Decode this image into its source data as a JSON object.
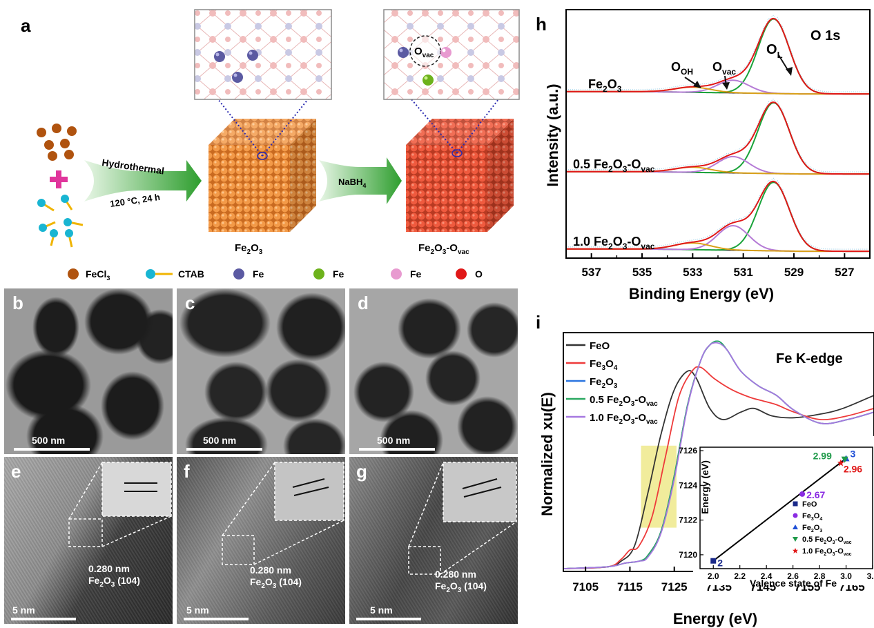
{
  "panels": {
    "a": "a",
    "b": "b",
    "c": "c",
    "d": "d",
    "e": "e",
    "f": "f",
    "g": "g",
    "h": "h",
    "i": "i"
  },
  "schematic": {
    "step1_top": "Hydrothermal",
    "step1_bottom": "120 °C, 24 h",
    "step2": "NaBH",
    "step2_sub": "4",
    "product1": "Fe",
    "product1_sub": "2",
    "product1_tail": "O",
    "product1_sub2": "3",
    "product2_main": "Fe",
    "product2_sub": "2",
    "product2_tail": "O",
    "product2_sub2": "3",
    "product2_suffix": "-O",
    "product2_vac": "vac",
    "ovac_main": "O",
    "ovac_sub": "vac",
    "legend": {
      "fecl3": "FeCl",
      "fecl3_sub": "3",
      "ctab": "CTAB",
      "fe1": "Fe",
      "fe2": "Fe",
      "fe3": "Fe",
      "o": "O"
    },
    "colors": {
      "fecl3": "#b0530f",
      "ctab_ball": "#19b5d2",
      "ctab_tail": "#f0b400",
      "fe_blue": "#5b5aa2",
      "fe_green": "#6db21c",
      "fe_pink": "#e89ad0",
      "o_red": "#e01818",
      "cube1": "#e98a3a",
      "cube2": "#e55a3c",
      "arrow": "#3aa332",
      "plus": "#e0359c"
    }
  },
  "tem": {
    "scale_500": "500 nm",
    "scale_5": "5 nm",
    "d_spacing": "0.280 nm",
    "plane_main": "Fe",
    "plane_sub": "2",
    "plane_tail": "O",
    "plane_sub2": "3",
    "plane_hkl": " (104)"
  },
  "chart_data": [
    {
      "type": "line",
      "panel": "h",
      "title": "O 1s",
      "xlabel": "Binding Energy (eV)",
      "ylabel": "Intensity (a.u.)",
      "xlim": [
        538,
        526
      ],
      "xticks": [
        537,
        535,
        533,
        531,
        529,
        527
      ],
      "xtick_labels": [
        "537",
        "535",
        "533",
        "531",
        "529",
        "527"
      ],
      "peak_labels": {
        "ol": "O",
        "ol_sub": "L",
        "ovac": "O",
        "ovac_sub": "vac",
        "ooh": "O",
        "ooh_sub": "OH"
      },
      "spectra": [
        {
          "name": "Fe",
          "name_sub": "2",
          "name_tail": "O",
          "name_sub2": "3",
          "name_suffix": "",
          "name_vac": "",
          "OL": {
            "center": 529.8,
            "height": 1.0
          },
          "Ovac": {
            "center": 531.4,
            "height": 0.17
          },
          "OOH": {
            "center": 533.0,
            "height": 0.07
          }
        },
        {
          "name": "0.5 Fe",
          "name_sub": "2",
          "name_tail": "O",
          "name_sub2": "3",
          "name_suffix": "-O",
          "name_vac": "vac",
          "OL": {
            "center": 529.8,
            "height": 0.95
          },
          "Ovac": {
            "center": 531.4,
            "height": 0.22
          },
          "OOH": {
            "center": 533.0,
            "height": 0.07
          }
        },
        {
          "name": "1.0 Fe",
          "name_sub": "2",
          "name_tail": "O",
          "name_sub2": "3",
          "name_suffix": "-O",
          "name_vac": "vac",
          "OL": {
            "center": 529.8,
            "height": 0.92
          },
          "Ovac": {
            "center": 531.4,
            "height": 0.33
          },
          "OOH": {
            "center": 533.0,
            "height": 0.09
          }
        }
      ],
      "colors": {
        "fit_sum": "#e01818",
        "OL": "#1aa33a",
        "Ovac": "#b57bd6",
        "OOH": "#d9a018",
        "baseline": "#222222",
        "raw": "#9fd3ea"
      }
    },
    {
      "type": "line",
      "panel": "i",
      "title": "Fe K-edge",
      "xlabel": "Energy (eV)",
      "ylabel": "Normalized xu(E)",
      "xlim": [
        7100,
        7170
      ],
      "xticks": [
        7105,
        7115,
        7125,
        7135,
        7145,
        7155,
        7165
      ],
      "xtick_labels": [
        "7105",
        "7115",
        "7125",
        "7135",
        "7145",
        "7155",
        "7165"
      ],
      "legend": [
        {
          "name": "FeO",
          "sub": "",
          "tail": "",
          "sub2": "",
          "color": "#333333"
        },
        {
          "name": "Fe",
          "sub": "3",
          "tail": "O",
          "sub2": "4",
          "color": "#ee3a3a"
        },
        {
          "name": "Fe",
          "sub": "2",
          "tail": "O",
          "sub2": "3",
          "color": "#2a74e0"
        },
        {
          "name": "0.5 Fe",
          "sub": "2",
          "tail": "O",
          "sub2": "3",
          "suffix": "-O",
          "vac": "vac",
          "color": "#2aa860"
        },
        {
          "name": "1.0 Fe",
          "sub": "2",
          "tail": "O",
          "sub2": "3",
          "suffix": "-O",
          "vac": "vac",
          "color": "#a678e0"
        }
      ],
      "series": [
        {
          "name": "FeO",
          "x": [
            7100,
            7110,
            7113,
            7116,
            7119,
            7122,
            7125,
            7128,
            7130,
            7133,
            7136,
            7140,
            7143,
            7147,
            7152,
            7158,
            7163,
            7170
          ],
          "y": [
            0.0,
            0.01,
            0.04,
            0.12,
            0.4,
            0.72,
            0.96,
            1.06,
            1.02,
            0.86,
            0.8,
            0.84,
            0.86,
            0.82,
            0.81,
            0.83,
            0.86,
            0.93
          ]
        },
        {
          "name": "Fe3O4",
          "x": [
            7100,
            7110,
            7113,
            7115,
            7117,
            7120,
            7123,
            7126,
            7129,
            7131,
            7134,
            7138,
            7142,
            7145,
            7148,
            7152,
            7158,
            7164,
            7170
          ],
          "y": [
            0.0,
            0.01,
            0.05,
            0.1,
            0.12,
            0.28,
            0.6,
            0.92,
            1.06,
            1.08,
            1.02,
            0.96,
            0.92,
            0.9,
            0.88,
            0.84,
            0.8,
            0.82,
            0.86
          ]
        },
        {
          "name": "Fe2O3",
          "x": [
            7100,
            7110,
            7114,
            7117,
            7119,
            7122,
            7125,
            7128,
            7131,
            7133,
            7135,
            7137,
            7140,
            7144,
            7148,
            7152,
            7158,
            7164,
            7170
          ],
          "y": [
            0.0,
            0.01,
            0.03,
            0.04,
            0.07,
            0.2,
            0.5,
            0.88,
            1.12,
            1.2,
            1.22,
            1.17,
            1.06,
            0.98,
            0.93,
            0.85,
            0.78,
            0.8,
            0.84
          ]
        },
        {
          "name": "0.5 Fe2O3-Ovac",
          "x": [
            7100,
            7110,
            7114,
            7117,
            7119,
            7122,
            7125,
            7128,
            7131,
            7133,
            7135,
            7137,
            7140,
            7144,
            7148,
            7152,
            7158,
            7164,
            7170
          ],
          "y": [
            0.0,
            0.01,
            0.03,
            0.04,
            0.07,
            0.2,
            0.5,
            0.88,
            1.12,
            1.2,
            1.22,
            1.17,
            1.06,
            0.98,
            0.93,
            0.85,
            0.78,
            0.8,
            0.84
          ]
        },
        {
          "name": "1.0 Fe2O3-Ovac",
          "x": [
            7100,
            7110,
            7114,
            7117,
            7119,
            7122,
            7125,
            7128,
            7131,
            7133,
            7135,
            7137,
            7140,
            7144,
            7148,
            7152,
            7158,
            7164,
            7170
          ],
          "y": [
            0.0,
            0.01,
            0.03,
            0.04,
            0.06,
            0.19,
            0.48,
            0.87,
            1.12,
            1.2,
            1.21,
            1.17,
            1.06,
            0.98,
            0.93,
            0.85,
            0.78,
            0.8,
            0.84
          ]
        }
      ],
      "inset": {
        "type": "scatter",
        "xlabel": "Valence state of Fe",
        "ylabel": "Energy (eV)",
        "xlim": [
          1.9,
          3.2
        ],
        "ylim": [
          7119.2,
          7126.2
        ],
        "xticks": [
          2.0,
          2.2,
          2.4,
          2.6,
          2.8,
          3.0,
          3.2
        ],
        "xtick_labels": [
          "2.0",
          "2.2",
          "2.4",
          "2.6",
          "2.8",
          "3.0",
          "3.2"
        ],
        "yticks": [
          7120,
          7122,
          7124,
          7126
        ],
        "ytick_labels": [
          "7120",
          "7122",
          "7124",
          "7126"
        ],
        "fit_line": {
          "x": [
            2.0,
            3.0
          ],
          "y": [
            7119.65,
            7125.55
          ]
        },
        "points": [
          {
            "name": "FeO",
            "x": 2.0,
            "y": 7119.65,
            "label": "2",
            "color": "#1a2a8a",
            "marker": "square"
          },
          {
            "name": "Fe3O4",
            "name_sub": "3",
            "name_tail": "O",
            "name_sub2": "4",
            "x": 2.67,
            "y": 7123.5,
            "label": "2.67",
            "color": "#8a2be2",
            "marker": "circle"
          },
          {
            "name": "Fe2O3",
            "name_sub": "2",
            "name_tail": "O",
            "name_sub2": "3",
            "x": 3.0,
            "y": 7125.55,
            "label": "3",
            "color": "#1f4fd6",
            "marker": "triangle"
          },
          {
            "name": "0.5 Fe2O3-Ovac",
            "x": 2.99,
            "y": 7125.5,
            "label": "2.99",
            "color": "#1f9a4a",
            "marker": "tri-down"
          },
          {
            "name": "1.0 Fe2O3-Ovac",
            "x": 2.96,
            "y": 7125.3,
            "label": "2.96",
            "color": "#e01818",
            "marker": "star"
          }
        ],
        "legend": [
          {
            "name": "FeO",
            "sub": "",
            "tail": "",
            "sub2": "",
            "suffix": "",
            "vac": ""
          },
          {
            "name": "Fe",
            "sub": "3",
            "tail": "O",
            "sub2": "4",
            "suffix": "",
            "vac": ""
          },
          {
            "name": "Fe",
            "sub": "2",
            "tail": "O",
            "sub2": "3",
            "suffix": "",
            "vac": ""
          },
          {
            "name": "0.5 Fe",
            "sub": "2",
            "tail": "O",
            "sub2": "3",
            "suffix": "-O",
            "vac": "vac"
          },
          {
            "name": "1.0 Fe",
            "sub": "2",
            "tail": "O",
            "sub2": "3",
            "suffix": "-O",
            "vac": "vac"
          }
        ]
      }
    }
  ]
}
